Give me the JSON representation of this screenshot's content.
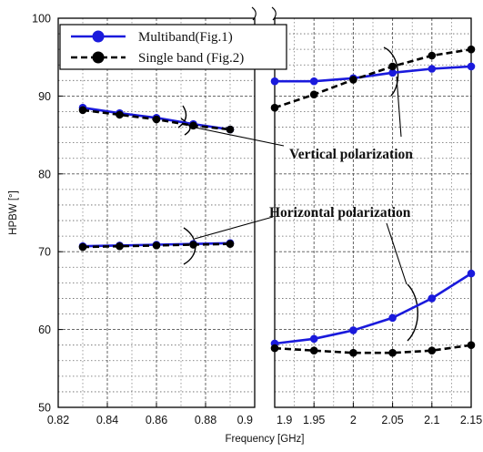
{
  "chart_data": {
    "type": "line",
    "title": "",
    "xlabel": "Frequency [GHz]",
    "ylabel": "HPBW [°]",
    "ylim": [
      50,
      100
    ],
    "y_ticks": [
      "50",
      "60",
      "70",
      "80",
      "90",
      "100"
    ],
    "x_axis_break": true,
    "panels": [
      {
        "xlim": [
          0.82,
          0.9
        ],
        "x_ticks": [
          "0.82",
          "0.84",
          "0.86",
          "0.88",
          "0.9"
        ]
      },
      {
        "xlim": [
          1.9,
          2.15
        ],
        "x_ticks": [
          "1.9",
          "1.95",
          "2",
          "2.05",
          "2.1",
          "2.15"
        ]
      }
    ],
    "series": [
      {
        "name": "Multiband(Fig.1)",
        "color": "#1a1adc",
        "line_style": "solid",
        "segments": [
          {
            "panel": 0,
            "polarization": "vertical",
            "x": [
              0.83,
              0.845,
              0.86,
              0.875,
              0.89
            ],
            "y": [
              88.5,
              87.8,
              87.2,
              86.4,
              85.7
            ]
          },
          {
            "panel": 0,
            "polarization": "horizontal",
            "x": [
              0.83,
              0.845,
              0.86,
              0.875,
              0.89
            ],
            "y": [
              70.7,
              70.8,
              70.9,
              71.0,
              71.1
            ]
          },
          {
            "panel": 1,
            "polarization": "vertical",
            "x": [
              1.9,
              1.95,
              2.0,
              2.05,
              2.1,
              2.15
            ],
            "y": [
              91.9,
              91.9,
              92.3,
              93.0,
              93.5,
              93.8
            ]
          },
          {
            "panel": 1,
            "polarization": "horizontal",
            "x": [
              1.9,
              1.95,
              2.0,
              2.05,
              2.1,
              2.15
            ],
            "y": [
              58.2,
              58.8,
              59.9,
              61.5,
              64.0,
              67.2
            ]
          }
        ]
      },
      {
        "name": "Single band (Fig.2)",
        "color": "#000000",
        "line_style": "dashed",
        "segments": [
          {
            "panel": 0,
            "polarization": "vertical",
            "x": [
              0.83,
              0.845,
              0.86,
              0.875,
              0.89
            ],
            "y": [
              88.2,
              87.6,
              87.0,
              86.2,
              85.7
            ]
          },
          {
            "panel": 0,
            "polarization": "horizontal",
            "x": [
              0.83,
              0.845,
              0.86,
              0.875,
              0.89
            ],
            "y": [
              70.6,
              70.7,
              70.8,
              70.9,
              71.0
            ]
          },
          {
            "panel": 1,
            "polarization": "vertical",
            "x": [
              1.9,
              1.95,
              2.0,
              2.05,
              2.1,
              2.15
            ],
            "y": [
              88.5,
              90.2,
              92.1,
              93.8,
              95.2,
              96.0
            ]
          },
          {
            "panel": 1,
            "polarization": "horizontal",
            "x": [
              1.9,
              1.95,
              2.0,
              2.05,
              2.1,
              2.15
            ],
            "y": [
              57.6,
              57.3,
              57.0,
              57.0,
              57.3,
              58.0
            ]
          }
        ]
      }
    ],
    "legend": {
      "placement": "top-left",
      "entries": [
        "Multiband(Fig.1)",
        "Single band (Fig.2)"
      ]
    },
    "annotations": [
      "Vertical polarization",
      "Horizontal polarization"
    ],
    "grid": true
  }
}
